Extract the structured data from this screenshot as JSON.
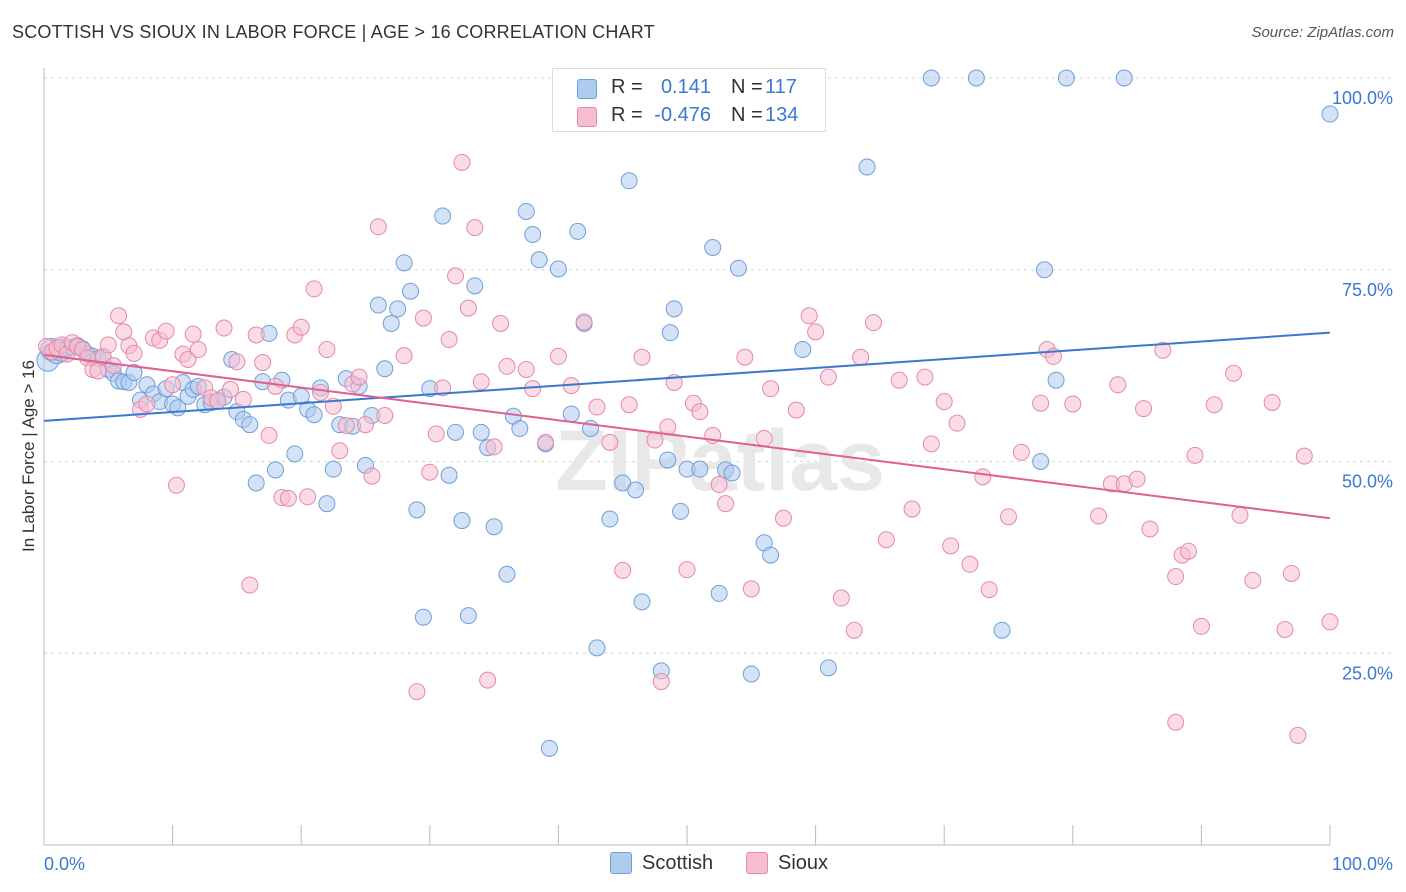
{
  "title": "SCOTTISH VS SIOUX IN LABOR FORCE | AGE > 16 CORRELATION CHART",
  "source": "Source: ZipAtlas.com",
  "watermark": "ZIPatlas",
  "legend": {
    "r_label": "R =",
    "n_label": "N =",
    "rows": [
      {
        "r": "0.141",
        "n": "117",
        "fill": "#aecbf0",
        "stroke": "#6f9fd8",
        "value_color": "#3b78d0"
      },
      {
        "r": "-0.476",
        "n": "134",
        "fill": "#f7bed0",
        "stroke": "#e38aa8",
        "value_color": "#3b78d0"
      }
    ]
  },
  "chart_data": {
    "type": "scatter",
    "xlabel": "In Labor Force | Age > 16",
    "x_tick_labels": [
      "0.0%",
      "100.0%"
    ],
    "y_tick_labels": [
      "25.0%",
      "50.0%",
      "75.0%",
      "100.0%"
    ],
    "y_ticks": [
      25,
      50,
      75,
      100
    ],
    "xlim": [
      0,
      100
    ],
    "ylim": [
      0,
      100
    ],
    "grid": "horizontal dashed",
    "series": [
      {
        "name": "Scottish",
        "fill": "#aecbf0",
        "stroke": "#6f9fd8",
        "line_color": "#3b78d0",
        "trend": [
          [
            0,
            55.3
          ],
          [
            100,
            66.8
          ]
        ],
        "points": [
          [
            0.3,
            63.2
          ],
          [
            0.6,
            64.6
          ],
          [
            1.0,
            64.2
          ],
          [
            1.4,
            64.5
          ],
          [
            1.8,
            64.8
          ],
          [
            2.2,
            64.9
          ],
          [
            2.6,
            65.1
          ],
          [
            3.0,
            64.7
          ],
          [
            3.4,
            64.0
          ],
          [
            3.8,
            63.7
          ],
          [
            4.2,
            63.4
          ],
          [
            4.6,
            63.6
          ],
          [
            5.0,
            62.0
          ],
          [
            5.4,
            61.5
          ],
          [
            5.8,
            60.5
          ],
          [
            6.2,
            60.4
          ],
          [
            6.6,
            60.3
          ],
          [
            7.0,
            61.6
          ],
          [
            7.5,
            58.0
          ],
          [
            8.0,
            60.0
          ],
          [
            8.5,
            58.8
          ],
          [
            9.0,
            57.8
          ],
          [
            9.5,
            59.5
          ],
          [
            10.0,
            57.5
          ],
          [
            10.4,
            57.0
          ],
          [
            10.8,
            60.3
          ],
          [
            11.2,
            58.5
          ],
          [
            11.6,
            59.4
          ],
          [
            12.0,
            59.8
          ],
          [
            12.5,
            57.4
          ],
          [
            13.0,
            57.7
          ],
          [
            13.5,
            57.9
          ],
          [
            14.0,
            58.4
          ],
          [
            14.6,
            63.3
          ],
          [
            15.0,
            56.5
          ],
          [
            15.5,
            55.5
          ],
          [
            16.0,
            54.8
          ],
          [
            16.5,
            47.2
          ],
          [
            17.0,
            60.4
          ],
          [
            17.5,
            66.7
          ],
          [
            18.0,
            48.9
          ],
          [
            18.5,
            60.6
          ],
          [
            19.0,
            58.0
          ],
          [
            19.5,
            51.0
          ],
          [
            20.0,
            58.5
          ],
          [
            20.5,
            56.8
          ],
          [
            21.0,
            56.1
          ],
          [
            21.5,
            59.6
          ],
          [
            22.0,
            44.5
          ],
          [
            22.5,
            49.0
          ],
          [
            23.0,
            54.8
          ],
          [
            23.5,
            60.8
          ],
          [
            24.0,
            54.6
          ],
          [
            24.5,
            59.8
          ],
          [
            25.0,
            49.5
          ],
          [
            25.5,
            56.0
          ],
          [
            26.0,
            70.4
          ],
          [
            26.5,
            62.1
          ],
          [
            27.0,
            68.0
          ],
          [
            27.5,
            69.9
          ],
          [
            28.0,
            75.9
          ],
          [
            28.5,
            72.2
          ],
          [
            29.0,
            43.7
          ],
          [
            29.5,
            29.7
          ],
          [
            30.0,
            59.5
          ],
          [
            31.0,
            82.0
          ],
          [
            31.5,
            48.2
          ],
          [
            32.0,
            53.8
          ],
          [
            32.5,
            42.3
          ],
          [
            33.0,
            29.9
          ],
          [
            33.5,
            72.9
          ],
          [
            34.0,
            53.8
          ],
          [
            34.5,
            51.8
          ],
          [
            35.0,
            41.5
          ],
          [
            36.0,
            35.3
          ],
          [
            36.5,
            55.9
          ],
          [
            37.0,
            54.3
          ],
          [
            37.5,
            82.6
          ],
          [
            38.0,
            79.6
          ],
          [
            38.5,
            76.3
          ],
          [
            39.0,
            52.3
          ],
          [
            39.3,
            12.6
          ],
          [
            40.0,
            75.1
          ],
          [
            41.0,
            56.2
          ],
          [
            41.5,
            80.0
          ],
          [
            42.0,
            68.0
          ],
          [
            42.5,
            54.3
          ],
          [
            43.0,
            25.7
          ],
          [
            44.0,
            42.5
          ],
          [
            45.0,
            47.2
          ],
          [
            45.5,
            86.6
          ],
          [
            46.0,
            46.3
          ],
          [
            46.5,
            31.7
          ],
          [
            47.5,
            100.0
          ],
          [
            48.0,
            22.7
          ],
          [
            48.5,
            50.2
          ],
          [
            48.7,
            66.8
          ],
          [
            49.0,
            69.9
          ],
          [
            49.5,
            43.5
          ],
          [
            50.0,
            49.0
          ],
          [
            51.0,
            49.0
          ],
          [
            52.0,
            77.9
          ],
          [
            52.5,
            32.8
          ],
          [
            53.0,
            48.9
          ],
          [
            53.5,
            48.5
          ],
          [
            54.0,
            75.2
          ],
          [
            55.0,
            22.3
          ],
          [
            56.0,
            39.4
          ],
          [
            56.5,
            37.8
          ],
          [
            59.0,
            64.6
          ],
          [
            59.5,
            100.0
          ],
          [
            61.0,
            23.1
          ],
          [
            64.0,
            88.4
          ],
          [
            69.0,
            100.0
          ],
          [
            72.5,
            100.0
          ],
          [
            74.5,
            28.0
          ],
          [
            77.5,
            50.0
          ],
          [
            77.8,
            75.0
          ],
          [
            78.7,
            60.6
          ],
          [
            79.5,
            100.0
          ],
          [
            84.0,
            100.0
          ],
          [
            100.0,
            95.3
          ]
        ]
      },
      {
        "name": "Sioux",
        "fill": "#f7bed0",
        "stroke": "#e38aa8",
        "line_color": "#e0608f",
        "trend": [
          [
            0,
            63.9
          ],
          [
            100,
            42.6
          ]
        ],
        "points": [
          [
            0.2,
            65.0
          ],
          [
            0.6,
            64.3
          ],
          [
            1.0,
            64.8
          ],
          [
            1.4,
            65.2
          ],
          [
            1.8,
            64.0
          ],
          [
            2.2,
            65.5
          ],
          [
            2.6,
            65.0
          ],
          [
            3.0,
            64.6
          ],
          [
            3.4,
            63.5
          ],
          [
            3.8,
            62.0
          ],
          [
            4.2,
            61.8
          ],
          [
            4.6,
            63.7
          ],
          [
            5.0,
            65.2
          ],
          [
            5.4,
            62.5
          ],
          [
            5.8,
            69.0
          ],
          [
            6.2,
            66.9
          ],
          [
            6.6,
            65.1
          ],
          [
            7.0,
            64.1
          ],
          [
            7.5,
            56.8
          ],
          [
            8.0,
            57.5
          ],
          [
            8.5,
            66.1
          ],
          [
            9.0,
            65.8
          ],
          [
            9.5,
            67.0
          ],
          [
            10.0,
            60.0
          ],
          [
            10.3,
            46.9
          ],
          [
            10.8,
            64.0
          ],
          [
            11.2,
            63.3
          ],
          [
            11.6,
            66.6
          ],
          [
            12.0,
            64.6
          ],
          [
            12.5,
            59.6
          ],
          [
            13.0,
            58.3
          ],
          [
            13.5,
            57.9
          ],
          [
            14.0,
            67.4
          ],
          [
            14.5,
            59.4
          ],
          [
            15.0,
            63.0
          ],
          [
            15.5,
            58.1
          ],
          [
            16.0,
            33.9
          ],
          [
            16.5,
            66.5
          ],
          [
            17.0,
            62.9
          ],
          [
            17.5,
            53.4
          ],
          [
            18.0,
            59.8
          ],
          [
            18.5,
            45.3
          ],
          [
            19.0,
            45.2
          ],
          [
            19.5,
            66.5
          ],
          [
            20.0,
            67.5
          ],
          [
            20.5,
            45.4
          ],
          [
            21.0,
            72.5
          ],
          [
            21.5,
            59.0
          ],
          [
            22.0,
            64.6
          ],
          [
            22.5,
            57.2
          ],
          [
            23.0,
            51.4
          ],
          [
            23.5,
            54.7
          ],
          [
            24.0,
            60.1
          ],
          [
            24.5,
            61.0
          ],
          [
            25.0,
            54.8
          ],
          [
            25.5,
            48.1
          ],
          [
            26.0,
            80.6
          ],
          [
            26.5,
            56.0
          ],
          [
            28.0,
            63.8
          ],
          [
            29.0,
            20.0
          ],
          [
            29.5,
            68.7
          ],
          [
            30.0,
            48.6
          ],
          [
            30.5,
            53.6
          ],
          [
            31.0,
            59.6
          ],
          [
            31.5,
            65.9
          ],
          [
            32.0,
            74.2
          ],
          [
            32.5,
            89.0
          ],
          [
            33.0,
            70.0
          ],
          [
            33.5,
            80.5
          ],
          [
            34.0,
            60.4
          ],
          [
            34.5,
            21.5
          ],
          [
            35.0,
            51.9
          ],
          [
            35.5,
            68.0
          ],
          [
            36.0,
            62.4
          ],
          [
            37.5,
            62.0
          ],
          [
            38.0,
            59.5
          ],
          [
            39.0,
            52.5
          ],
          [
            40.0,
            63.7
          ],
          [
            41.0,
            59.9
          ],
          [
            42.0,
            68.2
          ],
          [
            43.0,
            57.1
          ],
          [
            44.0,
            52.5
          ],
          [
            45.0,
            35.8
          ],
          [
            45.5,
            57.4
          ],
          [
            46.5,
            63.6
          ],
          [
            47.5,
            52.8
          ],
          [
            48.0,
            21.3
          ],
          [
            48.5,
            54.5
          ],
          [
            49.0,
            60.3
          ],
          [
            50.0,
            35.9
          ],
          [
            50.5,
            57.6
          ],
          [
            51.0,
            56.5
          ],
          [
            52.0,
            53.4
          ],
          [
            52.5,
            47.0
          ],
          [
            53.0,
            44.5
          ],
          [
            54.5,
            63.6
          ],
          [
            55.0,
            33.4
          ],
          [
            56.0,
            53.0
          ],
          [
            56.5,
            59.5
          ],
          [
            57.5,
            42.6
          ],
          [
            58.5,
            56.7
          ],
          [
            59.5,
            69.0
          ],
          [
            60.0,
            66.9
          ],
          [
            61.0,
            61.0
          ],
          [
            62.0,
            32.2
          ],
          [
            63.0,
            28.0
          ],
          [
            63.5,
            63.6
          ],
          [
            64.5,
            68.1
          ],
          [
            65.5,
            39.8
          ],
          [
            66.5,
            60.6
          ],
          [
            67.5,
            43.8
          ],
          [
            68.5,
            61.0
          ],
          [
            69.0,
            52.3
          ],
          [
            70.0,
            57.8
          ],
          [
            70.5,
            39.0
          ],
          [
            71.0,
            55.0
          ],
          [
            72.0,
            36.6
          ],
          [
            73.0,
            48.0
          ],
          [
            73.5,
            33.3
          ],
          [
            75.0,
            42.8
          ],
          [
            76.0,
            51.2
          ],
          [
            77.5,
            57.6
          ],
          [
            78.0,
            64.6
          ],
          [
            78.5,
            63.7
          ],
          [
            80.0,
            57.5
          ],
          [
            82.0,
            42.9
          ],
          [
            83.0,
            47.1
          ],
          [
            83.5,
            60.0
          ],
          [
            84.0,
            47.1
          ],
          [
            85.0,
            47.7
          ],
          [
            85.5,
            56.9
          ],
          [
            86.0,
            41.2
          ],
          [
            87.0,
            64.5
          ],
          [
            88.0,
            35.0
          ],
          [
            88.5,
            37.8
          ],
          [
            89.0,
            38.3
          ],
          [
            89.5,
            50.8
          ],
          [
            90.0,
            28.5
          ],
          [
            91.0,
            57.4
          ],
          [
            92.5,
            61.5
          ],
          [
            93.0,
            43.0
          ],
          [
            94.0,
            34.5
          ],
          [
            95.5,
            57.7
          ],
          [
            96.5,
            28.1
          ],
          [
            97.0,
            35.4
          ],
          [
            97.5,
            14.3
          ],
          [
            98.0,
            50.7
          ],
          [
            100.0,
            29.1
          ],
          [
            88.0,
            16.0
          ]
        ]
      }
    ]
  }
}
